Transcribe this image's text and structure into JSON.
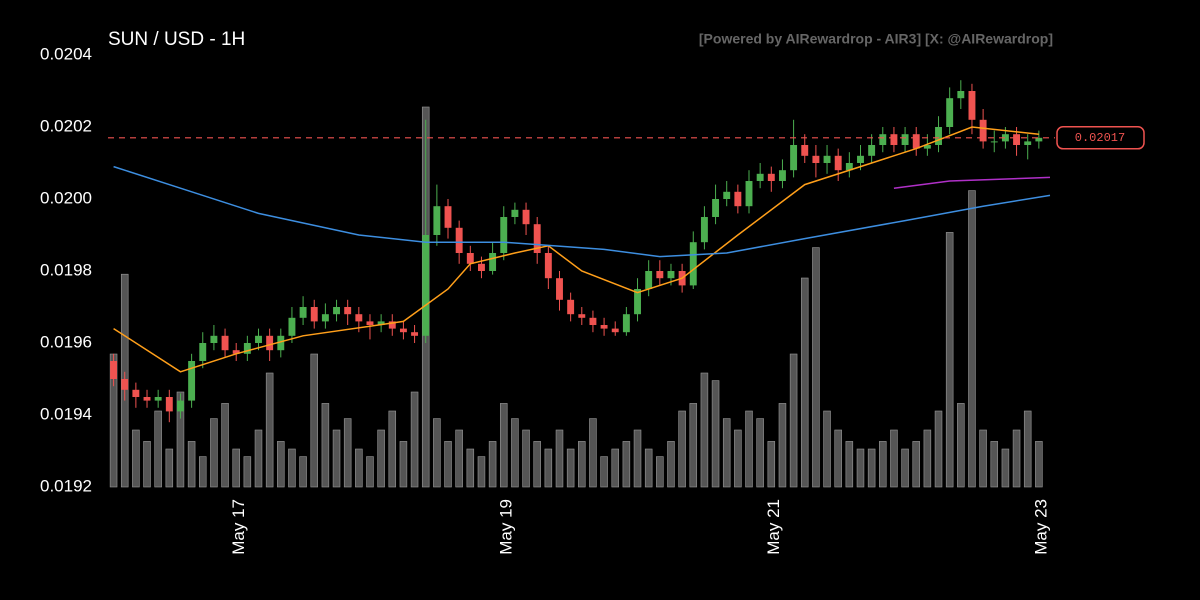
{
  "chart_data": {
    "type": "candlestick",
    "title": "SUN / USD - 1H",
    "watermark": "[Powered by AIRewardrop - AIR3] [X: @AIRewardrop]",
    "xlim": [
      -0.5,
      84
    ],
    "xticks": [
      {
        "value": 11.3,
        "label": "May 17"
      },
      {
        "value": 35.3,
        "label": "May 19"
      },
      {
        "value": 59.3,
        "label": "May 21"
      },
      {
        "value": 83.3,
        "label": "May 23"
      }
    ],
    "ylim": [
      0.0192,
      0.0204
    ],
    "yticks": [
      0.0192,
      0.0194,
      0.0196,
      0.0198,
      {
        "value": 0.02,
        "label": "0.0200"
      },
      0.0202,
      0.0204
    ],
    "vlim": [
      0,
      100
    ],
    "up_color": "#4caf50",
    "down_color": "#ef5350",
    "volume_color": "#555555",
    "open": [
      0.01955,
      0.0195,
      0.01947,
      0.01945,
      0.01944,
      0.01945,
      0.01941,
      0.01944,
      0.01955,
      0.0196,
      0.01962,
      0.01958,
      0.01957,
      0.0196,
      0.01962,
      0.01958,
      0.01962,
      0.01967,
      0.0197,
      0.01966,
      0.01968,
      0.0197,
      0.01968,
      0.01966,
      0.01965,
      0.01966,
      0.01964,
      0.01963,
      0.01962,
      0.0199,
      0.01998,
      0.01992,
      0.01985,
      0.01982,
      0.0198,
      0.01985,
      0.01995,
      0.01997,
      0.01993,
      0.01985,
      0.01978,
      0.01972,
      0.01968,
      0.01967,
      0.01965,
      0.01964,
      0.01963,
      0.01968,
      0.01975,
      0.0198,
      0.01978,
      0.0198,
      0.01976,
      0.01988,
      0.01995,
      0.02,
      0.02002,
      0.01998,
      0.02005,
      0.02007,
      0.02005,
      0.02008,
      0.02015,
      0.02012,
      0.0201,
      0.02012,
      0.02008,
      0.0201,
      0.02012,
      0.02015,
      0.02018,
      0.02015,
      0.02018,
      0.02014,
      0.02015,
      0.0202,
      0.02028,
      0.0203,
      0.02022,
      0.02016,
      0.02016,
      0.02018,
      0.02015,
      0.02016
    ],
    "high": [
      0.01957,
      0.01952,
      0.01949,
      0.01947,
      0.01947,
      0.01947,
      0.01946,
      0.01957,
      0.01963,
      0.01965,
      0.01964,
      0.0196,
      0.01962,
      0.01964,
      0.01964,
      0.01964,
      0.0197,
      0.01973,
      0.01972,
      0.01971,
      0.01972,
      0.01972,
      0.0197,
      0.01968,
      0.01968,
      0.01968,
      0.01966,
      0.01965,
      0.02022,
      0.02004,
      0.02,
      0.01994,
      0.01987,
      0.01984,
      0.01988,
      0.01998,
      0.01999,
      0.01999,
      0.01995,
      0.01987,
      0.0198,
      0.01974,
      0.0197,
      0.01969,
      0.01967,
      0.01966,
      0.0197,
      0.01978,
      0.01983,
      0.01983,
      0.01982,
      0.01982,
      0.01991,
      0.01998,
      0.02004,
      0.02005,
      0.02004,
      0.02008,
      0.0201,
      0.02009,
      0.02011,
      0.02022,
      0.02018,
      0.02015,
      0.02015,
      0.02014,
      0.02013,
      0.02015,
      0.02018,
      0.0202,
      0.0202,
      0.0202,
      0.0202,
      0.02018,
      0.02023,
      0.02031,
      0.02033,
      0.02032,
      0.02025,
      0.02019,
      0.0202,
      0.0202,
      0.02018,
      0.02019
    ],
    "low": [
      0.01948,
      0.01944,
      0.01942,
      0.01942,
      0.01942,
      0.01938,
      0.01939,
      0.01942,
      0.01953,
      0.01958,
      0.01956,
      0.01955,
      0.01955,
      0.01958,
      0.01955,
      0.01956,
      0.0196,
      0.01965,
      0.01964,
      0.01964,
      0.01966,
      0.01965,
      0.01963,
      0.01961,
      0.01963,
      0.01962,
      0.01961,
      0.0196,
      0.0196,
      0.01987,
      0.01989,
      0.01982,
      0.0198,
      0.01978,
      0.01979,
      0.01983,
      0.01993,
      0.0199,
      0.01982,
      0.01975,
      0.01969,
      0.01966,
      0.01965,
      0.01963,
      0.01962,
      0.01962,
      0.01962,
      0.01966,
      0.01973,
      0.01976,
      0.01976,
      0.01974,
      0.01975,
      0.01986,
      0.01993,
      0.01998,
      0.01996,
      0.01996,
      0.02003,
      0.02002,
      0.02003,
      0.02006,
      0.0201,
      0.02006,
      0.02007,
      0.02005,
      0.02006,
      0.02008,
      0.0201,
      0.02013,
      0.02013,
      0.02013,
      0.02012,
      0.02012,
      0.02013,
      0.02018,
      0.02025,
      0.02018,
      0.02014,
      0.02013,
      0.02014,
      0.02012,
      0.02011,
      0.02014
    ],
    "close": [
      0.0195,
      0.01947,
      0.01945,
      0.01944,
      0.01945,
      0.01941,
      0.01944,
      0.01955,
      0.0196,
      0.01962,
      0.01958,
      0.01957,
      0.0196,
      0.01962,
      0.01958,
      0.01962,
      0.01967,
      0.0197,
      0.01966,
      0.01968,
      0.0197,
      0.01968,
      0.01966,
      0.01965,
      0.01966,
      0.01964,
      0.01963,
      0.01962,
      0.0199,
      0.01998,
      0.01992,
      0.01985,
      0.01982,
      0.0198,
      0.01985,
      0.01995,
      0.01997,
      0.01993,
      0.01985,
      0.01978,
      0.01972,
      0.01968,
      0.01967,
      0.01965,
      0.01964,
      0.01963,
      0.01968,
      0.01975,
      0.0198,
      0.01978,
      0.0198,
      0.01976,
      0.01988,
      0.01995,
      0.02,
      0.02002,
      0.01998,
      0.02005,
      0.02007,
      0.02005,
      0.02008,
      0.02015,
      0.02012,
      0.0201,
      0.02012,
      0.02008,
      0.0201,
      0.02012,
      0.02015,
      0.02018,
      0.02015,
      0.02018,
      0.02014,
      0.02015,
      0.0202,
      0.02028,
      0.0203,
      0.02022,
      0.02016,
      0.02016,
      0.02018,
      0.02015,
      0.02016,
      0.02017
    ],
    "volume": [
      35,
      56,
      15,
      12,
      20,
      10,
      25,
      12,
      8,
      18,
      22,
      10,
      8,
      15,
      30,
      12,
      10,
      8,
      35,
      22,
      15,
      18,
      10,
      8,
      15,
      20,
      12,
      25,
      100,
      18,
      12,
      15,
      10,
      8,
      12,
      22,
      18,
      15,
      12,
      10,
      15,
      10,
      12,
      18,
      8,
      10,
      12,
      15,
      10,
      8,
      12,
      20,
      22,
      30,
      28,
      18,
      15,
      20,
      18,
      12,
      22,
      35,
      55,
      63,
      20,
      15,
      12,
      10,
      10,
      12,
      15,
      10,
      12,
      15,
      20,
      67,
      22,
      78,
      15,
      12,
      10,
      15,
      20,
      12
    ],
    "lines": [
      {
        "color": "#ff9f1a",
        "x": [
          0,
          6,
          11,
          17,
          26,
          30,
          32,
          36,
          39,
          42,
          47,
          51,
          56,
          62,
          67,
          72,
          77,
          83
        ],
        "values": [
          0.01964,
          0.01952,
          0.01957,
          0.01962,
          0.01966,
          0.01975,
          0.01982,
          0.01985,
          0.01987,
          0.0198,
          0.01974,
          0.01978,
          0.0199,
          0.02004,
          0.02009,
          0.02014,
          0.0202,
          0.02018
        ]
      },
      {
        "color": "#3d8ee0",
        "x": [
          0,
          6,
          13,
          22,
          28,
          35,
          44,
          49,
          55,
          62,
          71,
          78,
          84
        ],
        "values": [
          0.02009,
          0.02003,
          0.01996,
          0.0199,
          0.01988,
          0.01988,
          0.01986,
          0.01984,
          0.01985,
          0.01989,
          0.01994,
          0.01998,
          0.02001
        ]
      },
      {
        "color": "#b030c8",
        "x": [
          70,
          75,
          84
        ],
        "values": [
          0.02003,
          0.02005,
          0.02006
        ]
      }
    ],
    "current_price": 0.02017,
    "current_color": "#ef5350"
  }
}
